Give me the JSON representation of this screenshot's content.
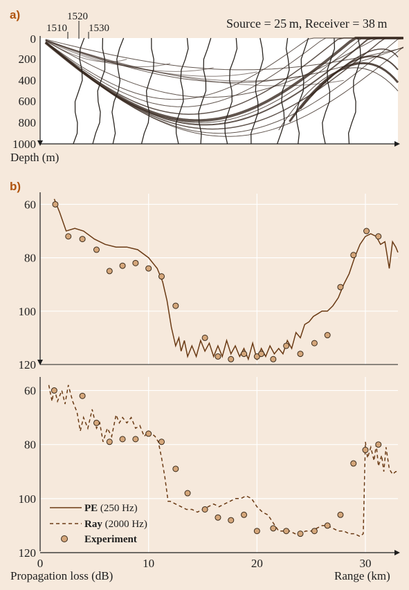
{
  "panel_a": {
    "label": "a)",
    "annotation": "Source = 25 m, Receiver = 38 m",
    "depth_label": "Depth (m)",
    "sound_speed_ticks": [
      "1510",
      "1520",
      "1530"
    ],
    "depth_ticks": [
      "0",
      "200",
      "400",
      "600",
      "800",
      "1000"
    ]
  },
  "panel_b": {
    "label": "b)",
    "ylabel": "Propagation loss (dB)",
    "xlabel": "Range (km)",
    "legend": {
      "pe_bold": "PE",
      "pe_rest": " (250 Hz)",
      "ray_bold": "Ray",
      "ray_rest": "  (2000 Hz)",
      "exp": "Experiment"
    }
  },
  "colors": {
    "background": "#f6e9dc",
    "pe_line": "#6a3a14",
    "marker": "#d4a67a",
    "grid": "#ffffff",
    "ink": "#1e1e1e"
  },
  "chart_data": [
    {
      "type": "line",
      "name": "ray-trace-depth-vs-range",
      "xlabel": "",
      "ylabel": "Depth (m)",
      "xlim": [
        0,
        33
      ],
      "ylim": [
        1000,
        0
      ],
      "yticks": [
        0,
        200,
        400,
        600,
        800,
        1000
      ],
      "grid": false
    },
    {
      "type": "line",
      "name": "pe-vs-experiment",
      "xlim": [
        0,
        33
      ],
      "ylim": [
        120,
        56
      ],
      "yticks": [
        60,
        80,
        100,
        120
      ],
      "xticks": [
        0,
        10,
        20,
        30
      ],
      "grid": true,
      "series": [
        {
          "name": "PE (250 Hz)",
          "style": "solid",
          "x": [
            1.3,
            1.8,
            2.4,
            3.2,
            4.0,
            5.0,
            6.0,
            7.0,
            8.0,
            9.0,
            10.0,
            10.8,
            11.3,
            11.7,
            12.1,
            12.5,
            12.8,
            13.0,
            13.3,
            13.6,
            14.0,
            14.4,
            14.8,
            15.2,
            15.6,
            16.0,
            16.4,
            16.8,
            17.2,
            17.6,
            18.0,
            18.4,
            18.8,
            19.2,
            19.6,
            20.0,
            20.4,
            20.8,
            21.2,
            21.6,
            22.0,
            22.4,
            22.8,
            23.2,
            23.6,
            24.0,
            24.4,
            24.8,
            25.2,
            25.6,
            26.0,
            26.5,
            27.0,
            27.5,
            28.0,
            28.5,
            29.0,
            29.5,
            30.0,
            30.5,
            31.0,
            31.4,
            31.8,
            32.2,
            32.5,
            32.8,
            33.0
          ],
          "values": [
            58,
            63,
            70,
            69,
            70,
            73,
            75,
            76,
            76,
            77,
            80,
            84,
            89,
            96,
            106,
            113,
            110,
            115,
            111,
            117,
            113,
            117,
            111,
            115,
            112,
            117,
            113,
            117,
            111,
            116,
            113,
            117,
            114,
            118,
            112,
            118,
            114,
            117,
            113,
            116,
            114,
            116,
            111,
            114,
            108,
            110,
            105,
            104,
            102,
            101,
            100,
            100,
            98,
            95,
            90,
            86,
            80,
            75,
            72,
            71,
            72,
            75,
            74,
            84,
            74,
            76,
            78
          ]
        },
        {
          "name": "Experiment",
          "style": "marker",
          "x": [
            1.4,
            2.6,
            3.9,
            5.2,
            6.4,
            7.6,
            8.8,
            10.0,
            11.2,
            12.5,
            15.2,
            16.4,
            17.6,
            18.8,
            20.0,
            20.4,
            21.5,
            22.7,
            24.0,
            25.3,
            26.5,
            27.7,
            28.9,
            30.1,
            31.2
          ],
          "values": [
            60,
            72,
            73,
            77,
            85,
            83,
            82,
            84,
            87,
            98,
            110,
            117,
            118,
            116,
            117,
            116,
            118,
            113,
            116,
            112,
            109,
            91,
            79,
            70,
            72
          ]
        }
      ]
    },
    {
      "type": "line",
      "name": "ray-vs-experiment",
      "xlim": [
        0,
        33
      ],
      "ylim": [
        120,
        55
      ],
      "yticks": [
        60,
        80,
        100,
        120
      ],
      "xticks": [
        0,
        10,
        20,
        30
      ],
      "grid": true,
      "series": [
        {
          "name": "Ray (2000 Hz)",
          "style": "dashed",
          "x": [
            0.8,
            1.1,
            1.3,
            1.6,
            2.0,
            2.3,
            2.6,
            3.0,
            3.4,
            3.7,
            4.0,
            4.4,
            4.8,
            5.2,
            5.5,
            5.8,
            6.2,
            6.6,
            7.0,
            7.3,
            7.6,
            8.0,
            8.4,
            8.8,
            9.2,
            9.6,
            10.0,
            10.3,
            10.6,
            10.9,
            11.2,
            11.5,
            11.8,
            12.0,
            12.5,
            13.0,
            13.5,
            14.0,
            14.5,
            15.0,
            15.5,
            16.0,
            16.5,
            17.0,
            17.5,
            18.0,
            18.5,
            19.0,
            19.5,
            20.0,
            20.5,
            21.0,
            21.5,
            22.0,
            22.5,
            23.0,
            23.5,
            24.0,
            24.5,
            25.0,
            25.5,
            26.0,
            26.5,
            27.0,
            27.5,
            28.0,
            28.5,
            29.0,
            29.5,
            29.8,
            30.0,
            30.2,
            30.5,
            30.8,
            31.0,
            31.2,
            31.5,
            31.7,
            31.9,
            32.2,
            32.5,
            32.8,
            33.0
          ],
          "values": [
            58,
            64,
            59,
            64,
            60,
            65,
            58,
            64,
            68,
            75,
            70,
            74,
            67,
            74,
            72,
            79,
            74,
            77,
            69,
            72,
            70,
            72,
            70,
            74,
            73,
            77,
            75,
            76,
            77,
            79,
            85,
            92,
            101,
            101,
            102,
            103,
            104,
            104,
            105,
            104,
            103,
            102,
            103,
            102,
            101,
            100,
            100,
            99,
            100,
            103,
            105,
            106,
            109,
            112,
            112,
            112,
            113,
            113,
            112,
            112,
            111,
            110,
            110,
            111,
            112,
            112,
            113,
            113,
            114,
            113,
            79,
            85,
            81,
            86,
            80,
            88,
            84,
            90,
            81,
            89,
            91,
            90,
            90
          ]
        },
        {
          "name": "Experiment",
          "style": "marker",
          "x": [
            1.3,
            3.9,
            5.2,
            6.4,
            7.6,
            8.8,
            10.0,
            11.2,
            12.5,
            13.6,
            15.2,
            16.4,
            17.6,
            18.8,
            20.0,
            21.5,
            22.7,
            24.0,
            25.3,
            26.5,
            27.7,
            28.9,
            30.0,
            31.2
          ],
          "values": [
            60,
            62,
            72,
            79,
            78,
            78,
            76,
            79,
            89,
            98,
            104,
            107,
            108,
            106,
            112,
            111,
            112,
            113,
            112,
            110,
            106,
            87,
            82,
            80
          ]
        }
      ]
    }
  ]
}
